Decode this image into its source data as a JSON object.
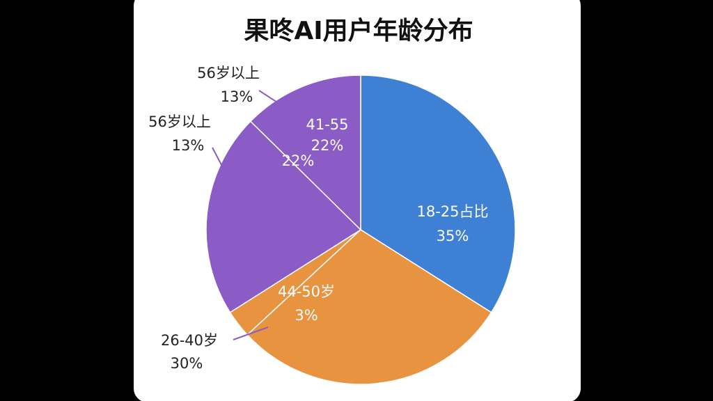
{
  "chart_data": {
    "type": "pie",
    "title": "果咚AI用户年龄分布",
    "categories": [
      "18-25占比",
      "26-40岁",
      "44-50岁",
      "41-55",
      "56岁以上"
    ],
    "values": [
      35,
      30,
      3,
      22,
      13
    ],
    "value_labels": [
      "35%",
      "30%",
      "3%",
      "22%",
      "13%"
    ],
    "colors": [
      "#3d80d4",
      "#e8933f",
      "#e8933f",
      "#8b5cc5",
      "#8b5cc5"
    ]
  }
}
